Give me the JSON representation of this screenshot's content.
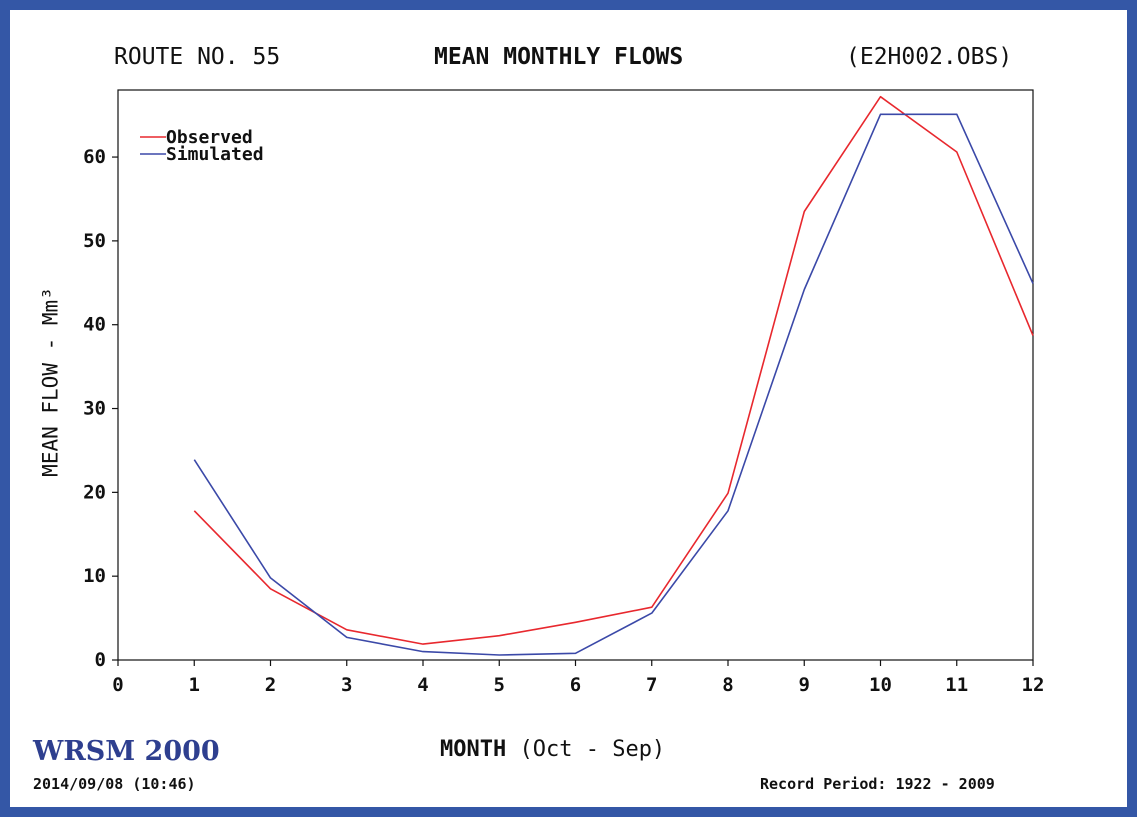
{
  "header": {
    "route": "ROUTE NO. 55",
    "title": "MEAN MONTHLY FLOWS",
    "file": "(E2H002.OBS)"
  },
  "footer": {
    "software": "WRSM 2000",
    "timestamp": "2014/09/08 (10:46)",
    "record_period": "Record Period: 1922 - 2009"
  },
  "chart_data": {
    "type": "line",
    "title": "MEAN MONTHLY FLOWS",
    "xlabel_main": "MONTH",
    "xlabel_sub": "(Oct - Sep)",
    "ylabel": "MEAN FLOW - Mm³",
    "xlim": [
      0,
      12
    ],
    "ylim": [
      0,
      68
    ],
    "xticks": [
      0,
      1,
      2,
      3,
      4,
      5,
      6,
      7,
      8,
      9,
      10,
      11,
      12
    ],
    "yticks": [
      0,
      10,
      20,
      30,
      40,
      50,
      60
    ],
    "grid": false,
    "legend_position": "top-left",
    "x": [
      1,
      2,
      3,
      4,
      5,
      6,
      7,
      8,
      9,
      10,
      11,
      12
    ],
    "series": [
      {
        "name": "Observed",
        "color": "#e8282e",
        "values": [
          17.8,
          8.5,
          3.6,
          1.9,
          2.9,
          4.5,
          6.3,
          19.9,
          53.5,
          67.2,
          60.6,
          38.7
        ]
      },
      {
        "name": "Simulated",
        "color": "#3b49a8",
        "values": [
          23.9,
          9.8,
          2.7,
          1.0,
          0.6,
          0.8,
          5.6,
          17.8,
          44.2,
          65.1,
          65.1,
          44.9
        ]
      }
    ]
  }
}
